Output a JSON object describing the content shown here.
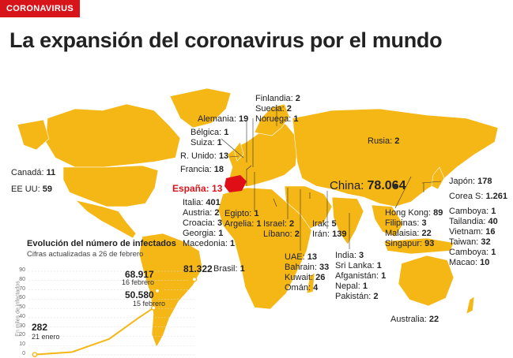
{
  "header": {
    "section_tag": "CORONAVIRUS",
    "title": "La expansión del coronavirus por el mundo"
  },
  "colors": {
    "land": "#f5b716",
    "spain": "#e00f17",
    "accent": "#d7141a",
    "line": "#f5b716"
  },
  "labels": [
    {
      "id": "finlandia",
      "name": "Finlandia:",
      "value": "2"
    },
    {
      "id": "suecia",
      "name": "Suecia:",
      "value": "2"
    },
    {
      "id": "noruega",
      "name": "Noruega:",
      "value": "1"
    },
    {
      "id": "alemania",
      "name": "Alemania:",
      "value": "19"
    },
    {
      "id": "belgica",
      "name": "Bélgica:",
      "value": "1"
    },
    {
      "id": "suiza",
      "name": "Suiza:",
      "value": "1"
    },
    {
      "id": "runido",
      "name": "R. Unido:",
      "value": "13"
    },
    {
      "id": "francia",
      "name": "Francia:",
      "value": "18"
    },
    {
      "id": "rusia",
      "name": "Rusia:",
      "value": "2"
    },
    {
      "id": "canada",
      "name": "Canadá:",
      "value": "11"
    },
    {
      "id": "eeuu",
      "name": "EE UU:",
      "value": "59"
    },
    {
      "id": "espana",
      "name": "España:",
      "value": "13"
    },
    {
      "id": "china",
      "name": "China:",
      "value": "78.064"
    },
    {
      "id": "japon",
      "name": "Japón:",
      "value": "178"
    },
    {
      "id": "corea",
      "name": "Corea S:",
      "value": "1.261"
    },
    {
      "id": "italia",
      "name": "Italia:",
      "value": "401"
    },
    {
      "id": "austria",
      "name": "Austria:",
      "value": "2"
    },
    {
      "id": "croacia",
      "name": "Croacia:",
      "value": "3"
    },
    {
      "id": "georgia",
      "name": "Georgia:",
      "value": "1"
    },
    {
      "id": "macedonia",
      "name": "Macedonia:",
      "value": "1"
    },
    {
      "id": "egipto",
      "name": "Egipto:",
      "value": "1"
    },
    {
      "id": "argelia",
      "name": "Argelia:",
      "value": "1"
    },
    {
      "id": "israel",
      "name": "Israel:",
      "value": "2"
    },
    {
      "id": "libano",
      "name": "Líbano:",
      "value": "2"
    },
    {
      "id": "irak",
      "name": "Irak:",
      "value": "5"
    },
    {
      "id": "iran",
      "name": "Irán:",
      "value": "139"
    },
    {
      "id": "hongkong",
      "name": "Hong Kong:",
      "value": "89"
    },
    {
      "id": "filipinas",
      "name": "Filipinas:",
      "value": "3"
    },
    {
      "id": "malaisia",
      "name": "Malaisia:",
      "value": "22"
    },
    {
      "id": "singapur",
      "name": "Singapur:",
      "value": "93"
    },
    {
      "id": "camboya1",
      "name": "Camboya:",
      "value": "1"
    },
    {
      "id": "tailandia",
      "name": "Tailandia:",
      "value": "40"
    },
    {
      "id": "vietnam",
      "name": "Vietnam:",
      "value": "16"
    },
    {
      "id": "taiwan",
      "name": "Taiwan:",
      "value": "32"
    },
    {
      "id": "camboya2",
      "name": "Camboya:",
      "value": "1"
    },
    {
      "id": "macao",
      "name": "Macao:",
      "value": "10"
    },
    {
      "id": "brasil",
      "name": "Brasil:",
      "value": "1"
    },
    {
      "id": "uae",
      "name": "UAE:",
      "value": "13"
    },
    {
      "id": "bahrain",
      "name": "Bahrain:",
      "value": "33"
    },
    {
      "id": "kuwait",
      "name": "Kuwait:",
      "value": "26"
    },
    {
      "id": "oman",
      "name": "Omán:",
      "value": "4"
    },
    {
      "id": "india",
      "name": "India:",
      "value": "3"
    },
    {
      "id": "srilanka",
      "name": "Sri Lanka:",
      "value": "1"
    },
    {
      "id": "afganistan",
      "name": "Afganistán:",
      "value": "1"
    },
    {
      "id": "nepal",
      "name": "Nepal:",
      "value": "1"
    },
    {
      "id": "pakistan",
      "name": "Pakistán:",
      "value": "2"
    },
    {
      "id": "australia",
      "name": "Australia:",
      "value": "22"
    }
  ],
  "chart_data": {
    "type": "line",
    "title": "Evolución del número de infectados",
    "subtitle": "Cifras actualizadas a 26 de febrero",
    "ylabel": "En miles de infectados",
    "yticks": [
      "0",
      "10",
      "20",
      "30",
      "40",
      "50",
      "60",
      "70",
      "80",
      "90"
    ],
    "ylim": [
      0,
      90
    ],
    "annotations": [
      {
        "value": "282",
        "date": "21 enero"
      },
      {
        "value": "50.580",
        "date": "15 febrero"
      },
      {
        "value": "68.917",
        "date": "16 febrero"
      },
      {
        "value": "81.322",
        "date": ""
      }
    ],
    "series": [
      {
        "points": [
          [
            0,
            0.282
          ],
          [
            10,
            3
          ],
          [
            20,
            17
          ],
          [
            28,
            40
          ],
          [
            32,
            50.58
          ],
          [
            33,
            68.917
          ],
          [
            43,
            81.322
          ]
        ]
      }
    ],
    "xlim": [
      0,
      43
    ]
  }
}
